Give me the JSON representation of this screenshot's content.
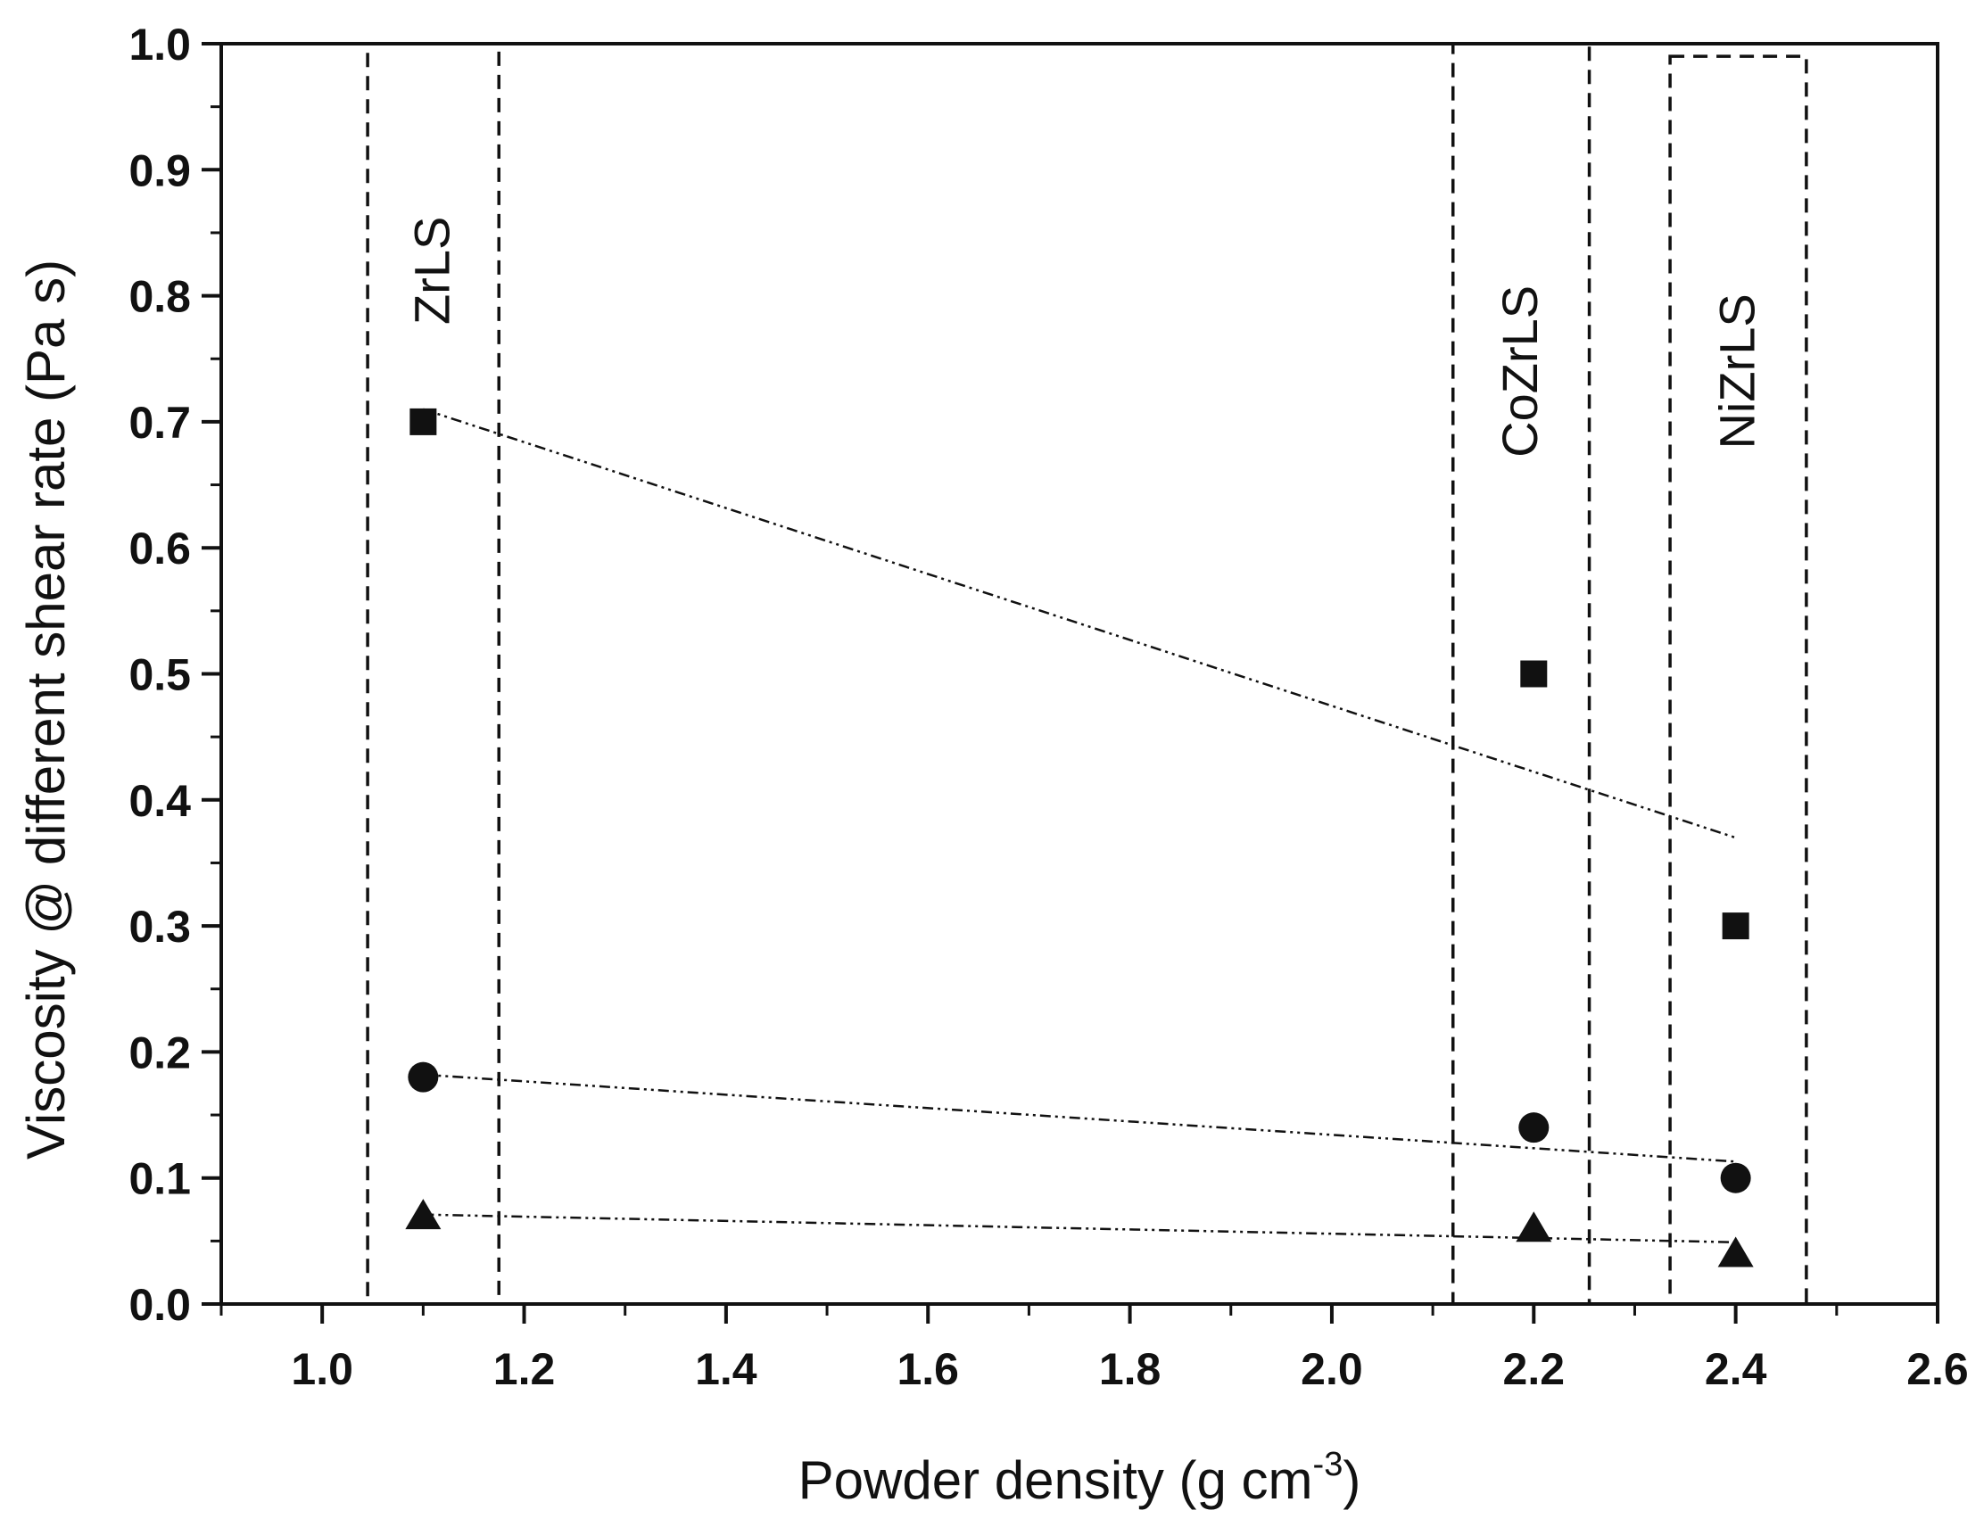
{
  "chart_data": {
    "type": "scatter",
    "xlabel": "Powder density (g cm",
    "xlabel_superscript": "-3",
    "xlabel_suffix": ")",
    "ylabel": "Viscosity @ different shear rate (Pa s)",
    "xlim": [
      0.9,
      2.6
    ],
    "ylim": [
      0.0,
      1.0
    ],
    "x_ticks": [
      1.0,
      1.2,
      1.4,
      1.6,
      1.8,
      2.0,
      2.2,
      2.4,
      2.6
    ],
    "x_tick_labels": [
      "1.0",
      "1.2",
      "1.4",
      "1.6",
      "1.8",
      "2.0",
      "2.2",
      "2.4",
      "2.6"
    ],
    "y_ticks": [
      0.0,
      0.1,
      0.2,
      0.3,
      0.4,
      0.5,
      0.6,
      0.7,
      0.8,
      0.9,
      1.0
    ],
    "y_tick_labels": [
      "0.0",
      "0.1",
      "0.2",
      "0.3",
      "0.4",
      "0.5",
      "0.6",
      "0.7",
      "0.8",
      "0.9",
      "1.0"
    ],
    "grid": false,
    "series": [
      {
        "marker": "square",
        "x": [
          1.1,
          2.2,
          2.4
        ],
        "y": [
          0.7,
          0.5,
          0.3
        ],
        "trend": {
          "x": [
            1.1,
            2.4
          ],
          "y": [
            0.71,
            0.37
          ]
        }
      },
      {
        "marker": "circle",
        "x": [
          1.1,
          2.2,
          2.4
        ],
        "y": [
          0.18,
          0.14,
          0.1
        ],
        "trend": {
          "x": [
            1.1,
            2.4
          ],
          "y": [
            0.182,
            0.113
          ]
        }
      },
      {
        "marker": "triangle",
        "x": [
          1.1,
          2.2,
          2.4
        ],
        "y": [
          0.07,
          0.06,
          0.04
        ],
        "trend": {
          "x": [
            1.1,
            2.4
          ],
          "y": [
            0.071,
            0.049
          ]
        }
      }
    ],
    "regions": [
      {
        "label": "ZrLS",
        "x_range": [
          1.045,
          1.175
        ],
        "y_range": [
          0.0,
          1.0
        ],
        "label_y": 0.82
      },
      {
        "label": "CoZrLS",
        "x_range": [
          2.12,
          2.255
        ],
        "y_range": [
          0.0,
          1.0
        ],
        "label_y": 0.74
      },
      {
        "label": "NiZrLS",
        "x_range": [
          2.335,
          2.47
        ],
        "y_range": [
          0.0,
          0.99
        ],
        "label_y": 0.74
      }
    ],
    "colors": {
      "ink": "#111111",
      "background": "#ffffff"
    }
  }
}
